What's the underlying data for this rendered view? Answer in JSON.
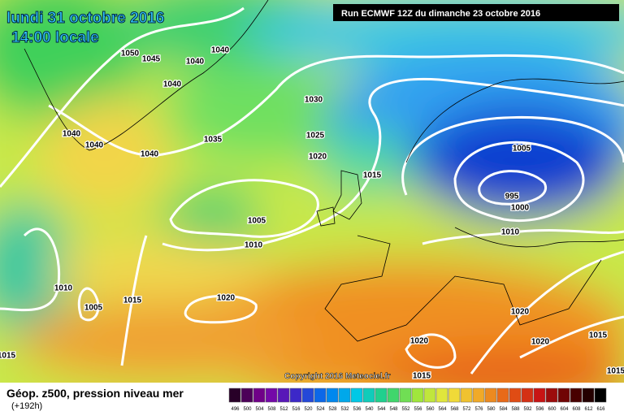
{
  "header": {
    "date": "lundi 31 octobre 2016",
    "time": "14:00 locale",
    "run": "Run ECMWF 12Z du dimanche 23 octobre 2016"
  },
  "isobar_labels": [
    "1050",
    "1045",
    "1040",
    "1040",
    "1040",
    "1030",
    "1040",
    "1040",
    "1040",
    "1035",
    "1025",
    "1020",
    "1015",
    "1005",
    "995",
    "1000",
    "1005",
    "1010",
    "1010",
    "1010",
    "1005",
    "1015",
    "1020",
    "1020",
    "1020",
    "1020",
    "1015",
    "1015",
    "1015",
    "1015"
  ],
  "copyright": "Copyright 2016 Meteociel.fr",
  "legend": {
    "title": "Géop. z500, pression niveau mer",
    "subtitle": "(+192h)",
    "scale": [
      "496",
      "500",
      "504",
      "508",
      "512",
      "516",
      "520",
      "524",
      "528",
      "532",
      "536",
      "540",
      "544",
      "548",
      "552",
      "556",
      "560",
      "564",
      "568",
      "572",
      "576",
      "580",
      "584",
      "588",
      "592",
      "596",
      "600",
      "604",
      "608",
      "612",
      "616"
    ]
  }
}
